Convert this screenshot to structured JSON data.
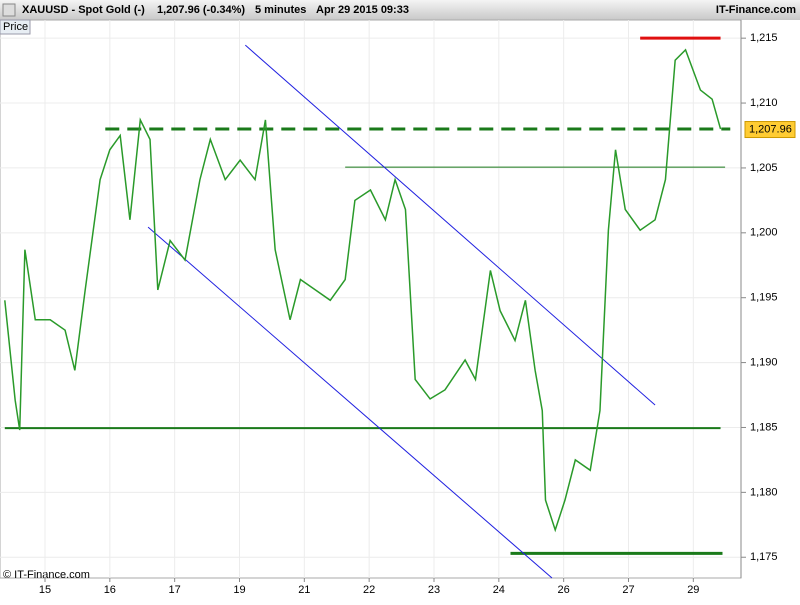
{
  "header": {
    "symbol": "XAUUSD - Spot Gold (-)",
    "quote": "1,207.96 (-0.34%)",
    "interval": "5 minutes",
    "time": "Apr 29 2015 09:33",
    "brand": "IT-Finance.com"
  },
  "panel_label": "Price",
  "footer": "© IT-Finance.com",
  "chart_data": {
    "type": "line",
    "series": [
      {
        "name": "XAUUSD",
        "color": "#2a9a2a",
        "x": [
          -0.62,
          -0.46,
          -0.39,
          -0.31,
          -0.15,
          0.08,
          0.31,
          0.46,
          0.62,
          0.85,
          1.0,
          1.16,
          1.31,
          1.47,
          1.62,
          1.74,
          1.93,
          2.16,
          2.39,
          2.55,
          2.78,
          3.01,
          3.24,
          3.4,
          3.55,
          3.78,
          3.94,
          4.17,
          4.4,
          4.63,
          4.78,
          5.02,
          5.25,
          5.4,
          5.56,
          5.71,
          5.94,
          6.17,
          6.48,
          6.64,
          6.87,
          7.02,
          7.25,
          7.41,
          7.56,
          7.67,
          7.72,
          7.87,
          8.02,
          8.18,
          8.41,
          8.56,
          8.69,
          8.8,
          8.95,
          9.18,
          9.41,
          9.57,
          9.72,
          9.88,
          10.11,
          10.29,
          10.42
        ],
        "values": [
          1194.8,
          1187.1,
          1184.8,
          1198.7,
          1193.3,
          1193.3,
          1192.5,
          1189.4,
          1195.6,
          1204.1,
          1206.4,
          1207.5,
          1201.0,
          1208.7,
          1207.2,
          1195.6,
          1199.4,
          1197.9,
          1204.1,
          1207.2,
          1204.1,
          1205.6,
          1204.1,
          1208.7,
          1198.7,
          1193.3,
          1196.4,
          1195.6,
          1194.8,
          1196.4,
          1202.5,
          1203.3,
          1201.0,
          1204.1,
          1201.8,
          1188.7,
          1187.2,
          1187.9,
          1190.2,
          1188.7,
          1197.1,
          1194.0,
          1191.7,
          1194.8,
          1189.4,
          1186.3,
          1179.4,
          1177.1,
          1179.4,
          1182.5,
          1181.7,
          1186.3,
          1200.2,
          1206.4,
          1201.8,
          1200.2,
          1201.0,
          1204.1,
          1213.3,
          1214.1,
          1211.0,
          1210.3,
          1208.0
        ]
      }
    ],
    "lines": [
      {
        "x": [
          0.93,
          10.57
        ],
        "y": [
          1208.0,
          1208.0
        ],
        "color": "#1a7a1a",
        "style": "dashed"
      },
      {
        "x": [
          4.63,
          10.49
        ],
        "y": [
          1205.06,
          1205.06
        ],
        "color": "#1a7a1a",
        "style": "solid"
      },
      {
        "x": [
          -0.62,
          10.42
        ],
        "y": [
          1184.95,
          1184.95
        ],
        "color": "#1a7a1a",
        "style": "solid"
      },
      {
        "x": [
          7.18,
          10.45
        ],
        "y": [
          1175.3,
          1175.3
        ],
        "color": "#1a7a1a",
        "style": "solid"
      },
      {
        "x": [
          9.18,
          10.42
        ],
        "y": [
          1215.0,
          1215.0
        ],
        "color": "#e01010",
        "style": "solid"
      },
      {
        "x": [
          3.09,
          9.41
        ],
        "y": [
          1214.46,
          1186.73
        ],
        "color": "#2020e0",
        "style": "solid"
      },
      {
        "x": [
          1.59,
          7.82
        ],
        "y": [
          1200.44,
          1173.4
        ],
        "color": "#2020e0",
        "style": "solid"
      }
    ],
    "last_price": {
      "value": 1207.96,
      "label": "1,207.96"
    },
    "xlim": [
      -0.694,
      10.72
    ],
    "xticks": [
      {
        "value": 0,
        "label": "15"
      },
      {
        "value": 1,
        "label": "16"
      },
      {
        "value": 2,
        "label": "17"
      },
      {
        "value": 3,
        "label": "19"
      },
      {
        "value": 4,
        "label": "21"
      },
      {
        "value": 5,
        "label": "22"
      },
      {
        "value": 6,
        "label": "23"
      },
      {
        "value": 7,
        "label": "24"
      },
      {
        "value": 8,
        "label": "26"
      },
      {
        "value": 9,
        "label": "27"
      },
      {
        "value": 10,
        "label": "29"
      }
    ],
    "ylim": [
      1173.4,
      1216.4
    ],
    "yticks": [
      {
        "value": 1175,
        "label": "1,175"
      },
      {
        "value": 1180,
        "label": "1,180"
      },
      {
        "value": 1185,
        "label": "1,185"
      },
      {
        "value": 1190,
        "label": "1,190"
      },
      {
        "value": 1195,
        "label": "1,195"
      },
      {
        "value": 1200,
        "label": "1,200"
      },
      {
        "value": 1205,
        "label": "1,205"
      },
      {
        "value": 1210,
        "label": "1,210"
      },
      {
        "value": 1215,
        "label": "1,215"
      }
    ],
    "grid": true
  }
}
